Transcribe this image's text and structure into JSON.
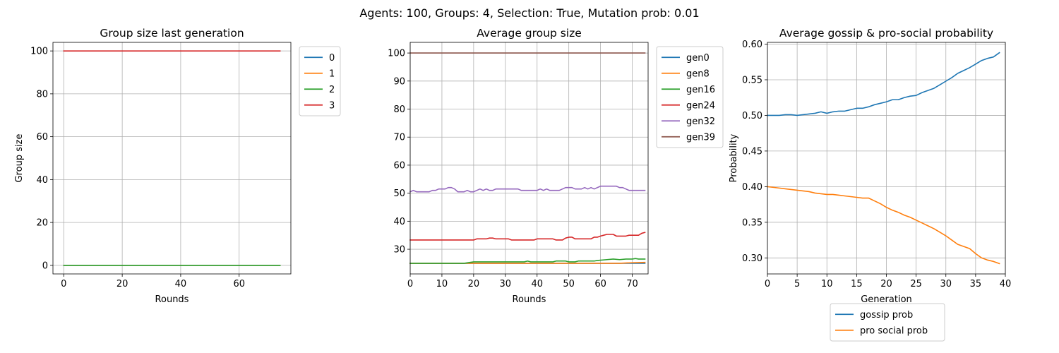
{
  "figure": {
    "suptitle": "Agents: 100, Groups: 4, Selection: True, Mutation prob: 0.01"
  },
  "chart_data": [
    {
      "type": "line",
      "title": "Group size last generation",
      "xlabel": "Rounds",
      "ylabel": "Group size",
      "xlim": [
        -3.7,
        77.7
      ],
      "ylim": [
        -4,
        104
      ],
      "xticks": [
        0,
        20,
        40,
        60
      ],
      "yticks": [
        0,
        20,
        40,
        60,
        80,
        100
      ],
      "grid": true,
      "legend": "outside-right-top",
      "series": [
        {
          "name": "0",
          "color": "#1f77b4",
          "x": [
            0,
            74
          ],
          "y": [
            0,
            0
          ]
        },
        {
          "name": "1",
          "color": "#ff7f0e",
          "x": [
            0,
            74
          ],
          "y": [
            0,
            0
          ]
        },
        {
          "name": "2",
          "color": "#2ca02c",
          "x": [
            0,
            74
          ],
          "y": [
            0,
            0
          ]
        },
        {
          "name": "3",
          "color": "#d62728",
          "x": [
            0,
            74
          ],
          "y": [
            100,
            100
          ]
        }
      ]
    },
    {
      "type": "line",
      "title": "Average group size",
      "xlabel": "Rounds",
      "ylabel": "",
      "xlim": [
        0,
        75
      ],
      "ylim": [
        21.2,
        103.8
      ],
      "xticks": [
        0,
        10,
        20,
        30,
        40,
        50,
        60,
        70
      ],
      "yticks": [
        30,
        40,
        50,
        60,
        70,
        80,
        90,
        100
      ],
      "grid": true,
      "legend": "outside-right-top",
      "series": [
        {
          "name": "gen0",
          "color": "#1f77b4",
          "x": [
            0,
            74
          ],
          "y": [
            25,
            25
          ]
        },
        {
          "name": "gen8",
          "color": "#ff7f0e",
          "x": [
            0,
            10,
            20,
            30,
            40,
            50,
            60,
            66,
            70,
            74
          ],
          "y": [
            25,
            25,
            25,
            25,
            25,
            25,
            25,
            25,
            25.2,
            25.3
          ]
        },
        {
          "name": "gen16",
          "color": "#2ca02c",
          "x": [
            0,
            10,
            17,
            20,
            30,
            36,
            37,
            38,
            45,
            46,
            49,
            50,
            52,
            53,
            58,
            59,
            62,
            64,
            66,
            68,
            70,
            71,
            72,
            74
          ],
          "y": [
            25,
            25,
            25,
            25.5,
            25.5,
            25.5,
            25.8,
            25.5,
            25.5,
            25.8,
            25.8,
            25.5,
            25.5,
            25.8,
            25.8,
            26,
            26.3,
            26.5,
            26.3,
            26.5,
            26.5,
            26.7,
            26.5,
            26.5
          ]
        },
        {
          "name": "gen24",
          "color": "#d62728",
          "x": [
            0,
            10,
            20,
            21,
            24,
            25,
            26,
            27,
            28,
            29,
            30,
            31,
            32,
            33,
            34,
            35,
            36,
            37,
            38,
            39,
            40,
            41,
            42,
            43,
            44,
            45,
            46,
            47,
            48,
            49,
            50,
            51,
            52,
            53,
            54,
            55,
            56,
            57,
            58,
            59,
            60,
            61,
            62,
            63,
            64,
            65,
            66,
            67,
            68,
            69,
            70,
            71,
            72,
            73,
            74
          ],
          "y": [
            33.3,
            33.3,
            33.3,
            33.7,
            33.7,
            34,
            34,
            33.7,
            33.7,
            33.7,
            33.7,
            33.7,
            33.3,
            33.3,
            33.3,
            33.3,
            33.3,
            33.3,
            33.3,
            33.3,
            33.7,
            33.7,
            33.7,
            33.7,
            33.7,
            33.7,
            33.3,
            33.3,
            33.3,
            34,
            34.3,
            34.3,
            33.7,
            33.7,
            33.7,
            33.7,
            33.7,
            33.7,
            34.3,
            34.3,
            34.7,
            35,
            35.3,
            35.3,
            35.3,
            34.7,
            34.7,
            34.7,
            34.7,
            35,
            35,
            35,
            35,
            35.7,
            36
          ]
        },
        {
          "name": "gen32",
          "color": "#9467bd",
          "x": [
            0,
            1,
            2,
            5,
            6,
            7,
            8,
            9,
            10,
            11,
            12,
            13,
            14,
            15,
            16,
            17,
            18,
            19,
            20,
            21,
            22,
            23,
            24,
            25,
            26,
            27,
            28,
            29,
            30,
            31,
            32,
            33,
            34,
            35,
            36,
            37,
            38,
            39,
            40,
            41,
            42,
            43,
            44,
            45,
            46,
            47,
            48,
            49,
            50,
            51,
            52,
            53,
            54,
            55,
            56,
            57,
            58,
            59,
            60,
            61,
            62,
            63,
            64,
            65,
            66,
            67,
            68,
            69,
            70,
            71,
            72,
            73,
            74
          ],
          "y": [
            50.5,
            51,
            50.5,
            50.5,
            50.5,
            51,
            51,
            51.5,
            51.5,
            51.5,
            52,
            52,
            51.5,
            50.5,
            50.5,
            50.5,
            51,
            50.5,
            50.5,
            51,
            51.5,
            51,
            51.5,
            51,
            51,
            51.5,
            51.5,
            51.5,
            51.5,
            51.5,
            51.5,
            51.5,
            51.5,
            51,
            51,
            51,
            51,
            51,
            51,
            51.5,
            51,
            51.5,
            51,
            51,
            51,
            51,
            51.5,
            52,
            52,
            52,
            51.5,
            51.5,
            51.5,
            52,
            51.5,
            52,
            51.5,
            52,
            52.5,
            52.5,
            52.5,
            52.5,
            52.5,
            52.5,
            52,
            52,
            51.5,
            51,
            51,
            51,
            51,
            51,
            51
          ]
        },
        {
          "name": "gen39",
          "color": "#8c564b",
          "x": [
            0,
            74
          ],
          "y": [
            100,
            100
          ]
        }
      ]
    },
    {
      "type": "line",
      "title": "Average gossip & pro-social probability",
      "xlabel": "Generation",
      "ylabel": "Probability",
      "xlim": [
        0,
        40
      ],
      "ylim": [
        0.2775,
        0.6025
      ],
      "xticks": [
        0,
        5,
        10,
        15,
        20,
        25,
        30,
        35,
        40
      ],
      "yticks": [
        0.3,
        0.35,
        0.4,
        0.45,
        0.5,
        0.55,
        0.6
      ],
      "ytick_labels": [
        "0.30",
        "0.35",
        "0.40",
        "0.45",
        "0.50",
        "0.55",
        "0.60"
      ],
      "grid": true,
      "legend": "below",
      "series": [
        {
          "name": "gossip prob",
          "color": "#1f77b4",
          "x": [
            0,
            1,
            2,
            3,
            4,
            5,
            6,
            7,
            8,
            9,
            10,
            11,
            12,
            13,
            14,
            15,
            16,
            17,
            18,
            19,
            20,
            21,
            22,
            23,
            24,
            25,
            26,
            27,
            28,
            29,
            30,
            31,
            32,
            33,
            34,
            35,
            36,
            37,
            38,
            39
          ],
          "y": [
            0.5,
            0.5,
            0.5,
            0.501,
            0.501,
            0.5,
            0.501,
            0.502,
            0.503,
            0.505,
            0.503,
            0.505,
            0.506,
            0.506,
            0.508,
            0.51,
            0.51,
            0.512,
            0.515,
            0.517,
            0.519,
            0.522,
            0.522,
            0.525,
            0.527,
            0.528,
            0.532,
            0.535,
            0.538,
            0.543,
            0.548,
            0.553,
            0.559,
            0.563,
            0.567,
            0.572,
            0.577,
            0.58,
            0.582,
            0.588
          ]
        },
        {
          "name": "pro social prob",
          "color": "#ff7f0e",
          "x": [
            0,
            1,
            2,
            3,
            4,
            5,
            6,
            7,
            8,
            9,
            10,
            11,
            12,
            13,
            14,
            15,
            16,
            17,
            18,
            19,
            20,
            21,
            22,
            23,
            24,
            25,
            26,
            27,
            28,
            29,
            30,
            31,
            32,
            33,
            34,
            35,
            36,
            37,
            38,
            39
          ],
          "y": [
            0.4,
            0.399,
            0.398,
            0.397,
            0.396,
            0.395,
            0.394,
            0.393,
            0.391,
            0.39,
            0.389,
            0.389,
            0.388,
            0.387,
            0.386,
            0.385,
            0.384,
            0.384,
            0.38,
            0.376,
            0.371,
            0.367,
            0.364,
            0.36,
            0.357,
            0.353,
            0.349,
            0.345,
            0.341,
            0.336,
            0.331,
            0.325,
            0.319,
            0.316,
            0.313,
            0.306,
            0.3,
            0.297,
            0.295,
            0.292
          ]
        }
      ]
    }
  ]
}
